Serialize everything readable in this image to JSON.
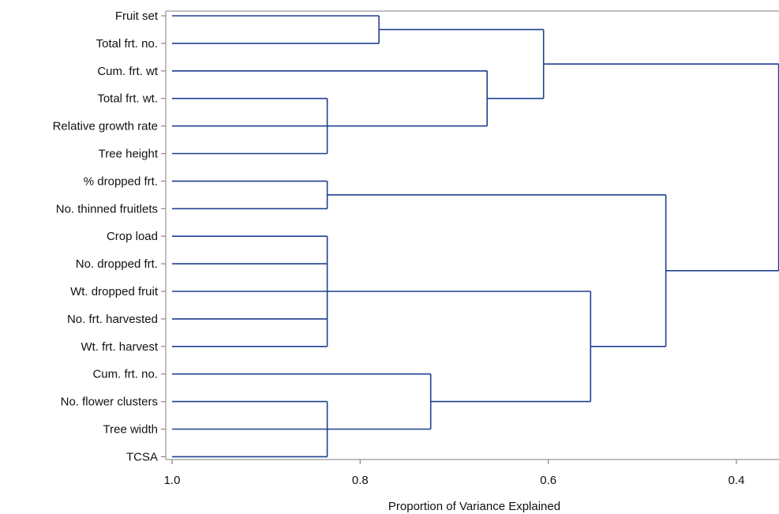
{
  "chart_data": {
    "type": "dendrogram",
    "title": "",
    "xlabel": "Proportion of Variance Explained",
    "ylabel": "",
    "xlim": [
      1.0,
      0.355
    ],
    "x_ticks": [
      "1.0",
      "0.8",
      "0.6",
      "0.4"
    ],
    "x_tick_values": [
      1.0,
      0.8,
      0.6,
      0.4
    ],
    "line_color": "#1f3f8f",
    "leaves": [
      "Fruit set",
      "Total frt. no.",
      "Cum. frt. wt",
      "Total frt. wt.",
      "Relative growth rate",
      "Tree height",
      "% dropped frt.",
      "No. thinned fruitlets",
      "Crop load",
      "No. dropped frt.",
      "Wt. dropped fruit",
      "No. frt. harvested",
      "Wt. frt. harvest",
      "Cum. frt. no.",
      "No. flower clusters",
      "Tree width",
      "TCSA"
    ],
    "merges": [
      {
        "id": "c1",
        "children": [
          "Total frt. wt.",
          "Relative growth rate",
          "Tree height"
        ],
        "height": 0.835
      },
      {
        "id": "c2",
        "children": [
          "% dropped frt.",
          "No. thinned fruitlets"
        ],
        "height": 0.835
      },
      {
        "id": "c3",
        "children": [
          "Crop load",
          "No. dropped frt.",
          "Wt. dropped fruit",
          "No. frt. harvested",
          "Wt. frt. harvest"
        ],
        "height": 0.835
      },
      {
        "id": "c4",
        "children": [
          "No. flower clusters",
          "Tree width",
          "TCSA"
        ],
        "height": 0.835
      },
      {
        "id": "c5",
        "children": [
          "Fruit set",
          "Total frt. no."
        ],
        "height": 0.78
      },
      {
        "id": "c6",
        "children": [
          "Cum. frt. no.",
          "c4"
        ],
        "height": 0.725
      },
      {
        "id": "c7",
        "children": [
          "Cum. frt. wt",
          "c1"
        ],
        "height": 0.665
      },
      {
        "id": "c8",
        "children": [
          "c5",
          "c7"
        ],
        "height": 0.605
      },
      {
        "id": "c9",
        "children": [
          "c3",
          "c6"
        ],
        "height": 0.555
      },
      {
        "id": "c10",
        "children": [
          "c2",
          "c9"
        ],
        "height": 0.475
      },
      {
        "id": "c11",
        "children": [
          "c8",
          "c10"
        ],
        "height": 0.355
      }
    ]
  }
}
